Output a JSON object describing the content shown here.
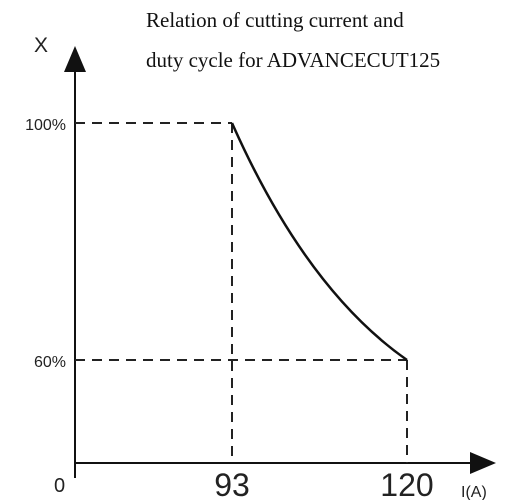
{
  "chart_data": {
    "type": "line",
    "title_lines": [
      "Relation of cutting current and",
      "duty cycle for ADVANCECUT125"
    ],
    "xlabel": "I(A)",
    "ylabel": "X",
    "origin_label": "0",
    "x_tick_labels": [
      "93",
      "120"
    ],
    "y_tick_labels": [
      "100%",
      "60%"
    ],
    "grid": false,
    "series": [
      {
        "x": [
          93,
          120
        ],
        "y": [
          100,
          60
        ]
      }
    ],
    "reference_points": [
      {
        "x": 93,
        "y": 100
      },
      {
        "x": 120,
        "y": 60
      }
    ],
    "xlim": [
      0,
      132
    ],
    "ylim": [
      0,
      115
    ]
  }
}
